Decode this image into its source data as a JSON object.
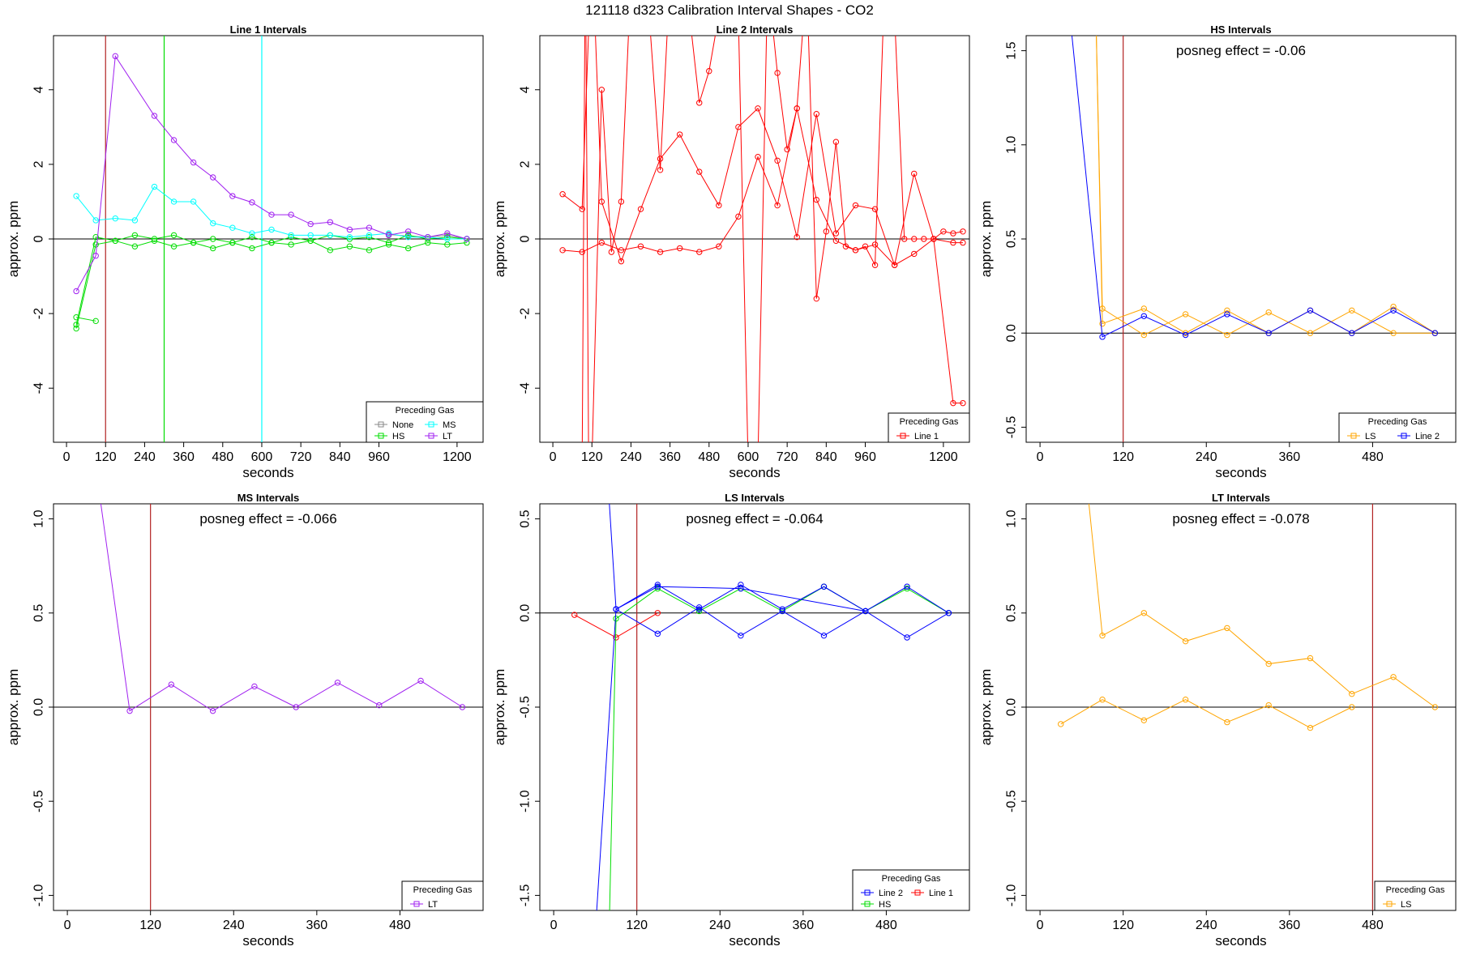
{
  "figure": {
    "title": "121118  d323   Calibration Interval Shapes - CO2"
  },
  "chart_data": [
    {
      "type": "line",
      "title": "Line 1 Intervals",
      "xlabel": "seconds",
      "ylabel": "approx. ppm",
      "xlim": [
        -40,
        1280
      ],
      "ylim": [
        -5.45,
        5.45
      ],
      "xticks": [
        0,
        120,
        240,
        360,
        480,
        600,
        720,
        840,
        960,
        1200
      ],
      "yticks": [
        -4,
        -2,
        0,
        2,
        4
      ],
      "hlines": [
        0
      ],
      "vlines": [
        {
          "x": 120,
          "color": "#b22222"
        },
        {
          "x": 300,
          "color": "#00dd00"
        },
        {
          "x": 600,
          "color": "#00ffff"
        }
      ],
      "annotation": "",
      "legend": {
        "title": "Preceding Gas",
        "position": "bottom-right",
        "cols": 2,
        "entries": [
          {
            "label": "None",
            "color": "#888888"
          },
          {
            "label": "MS",
            "color": "#00ffff"
          },
          {
            "label": "HS",
            "color": "#00dd00"
          },
          {
            "label": "LT",
            "color": "#a020f0"
          }
        ]
      },
      "series": [
        {
          "name": "None",
          "color": "#888888",
          "x": [
            990,
            1050,
            1110,
            1170,
            1230
          ],
          "y": [
            0.12,
            0.08,
            0.05,
            0.1,
            0.0
          ]
        },
        {
          "name": "HS",
          "color": "#00dd00",
          "x": [
            30,
            90,
            150,
            210,
            270,
            330,
            390,
            450,
            510,
            570,
            630,
            690,
            750,
            810,
            870,
            930,
            990,
            1050,
            1110,
            1170,
            1230
          ],
          "y": [
            -2.3,
            0.05,
            -0.05,
            -0.2,
            -0.05,
            -0.2,
            -0.1,
            -0.25,
            -0.1,
            -0.25,
            -0.1,
            -0.15,
            -0.05,
            -0.3,
            -0.2,
            -0.3,
            -0.15,
            -0.25,
            -0.1,
            -0.15,
            -0.1
          ]
        },
        {
          "name": "HS",
          "color": "#00dd00",
          "x": [
            30,
            90,
            150,
            210,
            270,
            330,
            390,
            450,
            510,
            570,
            630,
            690,
            750,
            810,
            870,
            930,
            990,
            1050,
            1110,
            1170,
            1230
          ],
          "y": [
            -2.4,
            -0.15,
            -0.05,
            0.1,
            0.0,
            0.1,
            -0.1,
            0.0,
            -0.1,
            0.05,
            -0.1,
            0.05,
            -0.05,
            0.1,
            0.0,
            0.05,
            -0.1,
            0.1,
            0.0,
            0.05,
            0.0
          ]
        },
        {
          "name": "HS",
          "color": "#00dd00",
          "x": [
            30,
            90
          ],
          "y": [
            -2.1,
            -2.2
          ]
        },
        {
          "name": "MS",
          "color": "#00ffff",
          "x": [
            30,
            90,
            150,
            210,
            270,
            330,
            390,
            450,
            510,
            570,
            630,
            690,
            750,
            810,
            870,
            930,
            990,
            1050,
            1110,
            1170,
            1230
          ],
          "y": [
            1.15,
            0.5,
            0.55,
            0.5,
            1.4,
            1.0,
            1.0,
            0.42,
            0.3,
            0.15,
            0.25,
            0.1,
            0.1,
            0.1,
            0.05,
            0.1,
            0.15,
            0.05,
            0.05,
            0.0,
            0.0
          ]
        },
        {
          "name": "LT",
          "color": "#a020f0",
          "x": [
            30,
            90,
            150,
            270,
            330,
            390,
            450,
            510,
            570,
            630,
            690,
            750,
            810,
            870,
            930,
            990,
            1050,
            1110,
            1170,
            1230
          ],
          "y": [
            -1.4,
            -0.45,
            4.9,
            3.3,
            2.65,
            2.05,
            1.65,
            1.15,
            0.98,
            0.65,
            0.65,
            0.4,
            0.45,
            0.25,
            0.3,
            0.1,
            0.2,
            0.05,
            0.15,
            0.0
          ]
        }
      ]
    },
    {
      "type": "line",
      "title": "Line 2 Intervals",
      "xlabel": "seconds",
      "ylabel": "approx. ppm",
      "xlim": [
        -40,
        1280
      ],
      "ylim": [
        -5.45,
        5.45
      ],
      "xticks": [
        0,
        120,
        240,
        360,
        480,
        600,
        720,
        840,
        960,
        1200
      ],
      "yticks": [
        -4,
        -2,
        0,
        2,
        4
      ],
      "hlines": [
        0
      ],
      "vlines": [],
      "annotation": "",
      "legend": {
        "title": "Preceding Gas",
        "position": "bottom-right",
        "cols": 1,
        "entries": [
          {
            "label": "Line 1",
            "color": "#ff0000"
          }
        ]
      },
      "series": [
        {
          "name": "Line 1",
          "color": "#ff0000",
          "x": [
            30,
            90,
            150,
            210,
            270,
            330,
            390,
            450,
            510,
            570,
            630,
            690,
            750,
            810,
            870,
            930,
            990,
            1050,
            1110,
            1170,
            1230,
            1260
          ],
          "y": [
            -0.3,
            -0.35,
            -0.1,
            -0.3,
            -0.2,
            -0.35,
            -0.25,
            -0.35,
            -0.2,
            0.6,
            2.2,
            0.9,
            3.5,
            1.05,
            -0.05,
            -0.3,
            -0.15,
            -0.7,
            -0.4,
            0.0,
            -0.1,
            -0.1
          ]
        },
        {
          "name": "Line 1",
          "color": "#ff0000",
          "x": [
            30,
            90,
            120,
            150,
            210,
            270,
            330,
            390,
            450,
            510,
            570,
            630,
            690,
            750,
            810,
            870,
            930,
            990,
            1050,
            1110,
            1170,
            1230,
            1260
          ],
          "y": [
            1.2,
            0.8,
            8,
            1.0,
            -0.6,
            0.8,
            2.15,
            2.8,
            1.8,
            0.9,
            3.0,
            3.5,
            2.1,
            0.05,
            3.35,
            0.15,
            0.9,
            0.8,
            -0.7,
            1.75,
            0.0,
            -4.4,
            -4.4
          ]
        },
        {
          "name": "Line 1",
          "color": "#ff0000",
          "x": [
            90,
            100,
            110,
            120,
            150,
            180,
            210,
            240,
            270,
            300,
            330,
            360,
            390,
            420,
            450,
            480,
            510,
            540,
            570,
            600,
            630,
            660,
            690,
            720,
            750,
            780,
            810,
            840,
            870,
            900,
            930,
            960,
            990,
            1020,
            1050,
            1080,
            1110,
            1140,
            1170,
            1200,
            1230,
            1260
          ],
          "y": [
            -6,
            8,
            -6,
            -6,
            4.0,
            -0.35,
            1.0,
            7,
            6,
            5.5,
            1.85,
            7,
            5.5,
            6,
            3.65,
            4.5,
            6,
            6,
            6,
            -6,
            -6,
            7,
            4.45,
            2.4,
            3.5,
            7,
            -1.6,
            0.2,
            2.6,
            -0.2,
            -0.3,
            -0.2,
            -0.7,
            7,
            6,
            0.0,
            0.0,
            0.0,
            0.0,
            0.2,
            0.15,
            0.2
          ]
        }
      ]
    },
    {
      "type": "line",
      "title": "HS Intervals",
      "xlabel": "seconds",
      "ylabel": "approx. ppm",
      "xlim": [
        -20,
        600
      ],
      "ylim": [
        -0.58,
        1.58
      ],
      "xticks": [
        0,
        120,
        240,
        360,
        480
      ],
      "yticks": [
        -0.5,
        0.0,
        0.5,
        1.0,
        1.5
      ],
      "hlines": [
        0
      ],
      "vlines": [
        {
          "x": 120,
          "color": "#b22222"
        }
      ],
      "annotation": "posneg effect = -0.06",
      "legend": {
        "title": "Preceding Gas",
        "position": "bottom-right",
        "cols": 2,
        "entries": [
          {
            "label": "LS",
            "color": "#ffa500"
          },
          {
            "label": "Line 2",
            "color": "#0000ff"
          }
        ]
      },
      "series": [
        {
          "name": "LS",
          "color": "#ffa500",
          "x": [
            80,
            90,
            150,
            210,
            270,
            330,
            390,
            450,
            510,
            570
          ],
          "y": [
            1.8,
            0.05,
            0.13,
            0.0,
            0.12,
            0.0,
            0.12,
            0.0,
            0.14,
            0.0
          ]
        },
        {
          "name": "LS",
          "color": "#ffa500",
          "x": [
            80,
            90,
            150,
            210,
            270,
            330,
            390,
            450,
            510,
            570
          ],
          "y": [
            1.8,
            0.13,
            -0.01,
            0.1,
            -0.01,
            0.11,
            0.0,
            0.12,
            0.0,
            0.0
          ]
        },
        {
          "name": "Line 2",
          "color": "#0000ff",
          "x": [
            40,
            90,
            150,
            210,
            270,
            330,
            390,
            450,
            510,
            570
          ],
          "y": [
            1.8,
            -0.02,
            0.09,
            -0.01,
            0.1,
            0.0,
            0.12,
            0.0,
            0.12,
            0.0
          ]
        }
      ]
    },
    {
      "type": "line",
      "title": "MS Intervals",
      "xlabel": "seconds",
      "ylabel": "approx. ppm",
      "xlim": [
        -20,
        600
      ],
      "ylim": [
        -1.08,
        1.08
      ],
      "xticks": [
        0,
        120,
        240,
        360,
        480
      ],
      "yticks": [
        -1.0,
        -0.5,
        0.0,
        0.5,
        1.0
      ],
      "hlines": [
        0
      ],
      "vlines": [
        {
          "x": 120,
          "color": "#b22222"
        }
      ],
      "annotation": "posneg effect = -0.066",
      "legend": {
        "title": "Preceding Gas",
        "position": "bottom-right",
        "cols": 1,
        "entries": [
          {
            "label": "LT",
            "color": "#a020f0"
          }
        ]
      },
      "series": [
        {
          "name": "LT",
          "color": "#a020f0",
          "x": [
            40,
            90,
            150,
            210,
            270,
            330,
            390,
            450,
            510,
            570
          ],
          "y": [
            1.3,
            -0.02,
            0.12,
            -0.02,
            0.11,
            0.0,
            0.13,
            0.01,
            0.14,
            0.0
          ]
        }
      ]
    },
    {
      "type": "line",
      "title": "LS Intervals",
      "xlabel": "seconds",
      "ylabel": "approx. ppm",
      "xlim": [
        -20,
        600
      ],
      "ylim": [
        -1.58,
        0.58
      ],
      "xticks": [
        0,
        120,
        240,
        360,
        480
      ],
      "yticks": [
        -1.5,
        -1.0,
        -0.5,
        0.0,
        0.5
      ],
      "hlines": [
        0
      ],
      "vlines": [
        {
          "x": 120,
          "color": "#b22222"
        }
      ],
      "annotation": "posneg effect = -0.064",
      "legend": {
        "title": "Preceding Gas",
        "position": "bottom-right",
        "cols": 2,
        "entries": [
          {
            "label": "Line 2",
            "color": "#0000ff"
          },
          {
            "label": "Line 1",
            "color": "#ff0000"
          },
          {
            "label": "HS",
            "color": "#00dd00"
          }
        ]
      },
      "series": [
        {
          "name": "Line 1",
          "color": "#ff0000",
          "x": [
            30,
            90,
            150
          ],
          "y": [
            -0.01,
            -0.13,
            0.0
          ]
        },
        {
          "name": "HS",
          "color": "#00dd00",
          "x": [
            80,
            90,
            150,
            210,
            270,
            330,
            390,
            450,
            510,
            570
          ],
          "y": [
            -1.7,
            -0.03,
            0.13,
            0.01,
            0.13,
            0.01,
            0.14,
            0.01,
            0.13,
            0.0
          ]
        },
        {
          "name": "Line 2",
          "color": "#0000ff",
          "x": [
            60,
            90,
            150,
            210,
            270,
            330,
            390,
            450,
            510,
            570
          ],
          "y": [
            -1.7,
            0.02,
            0.15,
            0.02,
            0.15,
            0.02,
            0.14,
            0.01,
            0.14,
            0.0
          ]
        },
        {
          "name": "Line 2",
          "color": "#0000ff",
          "x": [
            80,
            90,
            150,
            210,
            270,
            330,
            390,
            450,
            510,
            570
          ],
          "y": [
            0.6,
            0.02,
            -0.11,
            0.03,
            -0.12,
            0.01,
            -0.12,
            0.01,
            -0.13,
            0.0
          ]
        },
        {
          "name": "Line 2",
          "color": "#0000ff",
          "x": [
            90,
            150,
            270,
            450
          ],
          "y": [
            0.02,
            0.14,
            0.13,
            0.01
          ]
        }
      ]
    },
    {
      "type": "line",
      "title": "LT Intervals",
      "xlabel": "seconds",
      "ylabel": "approx. ppm",
      "xlim": [
        -20,
        600
      ],
      "ylim": [
        -1.08,
        1.08
      ],
      "xticks": [
        0,
        120,
        240,
        360,
        480
      ],
      "yticks": [
        -1.0,
        -0.5,
        0.0,
        0.5,
        1.0
      ],
      "hlines": [
        0
      ],
      "vlines": [
        {
          "x": 480,
          "color": "#b22222"
        }
      ],
      "annotation": "posneg effect = -0.078",
      "legend": {
        "title": "Preceding Gas",
        "position": "bottom-right",
        "cols": 1,
        "entries": [
          {
            "label": "LS",
            "color": "#ffa500"
          }
        ]
      },
      "series": [
        {
          "name": "LS",
          "color": "#ffa500",
          "x": [
            70,
            90,
            150,
            210,
            270,
            330,
            390,
            450,
            510,
            570
          ],
          "y": [
            1.1,
            0.38,
            0.5,
            0.35,
            0.42,
            0.23,
            0.26,
            0.07,
            0.16,
            0.0
          ]
        },
        {
          "name": "LS",
          "color": "#ffa500",
          "x": [
            30,
            90,
            150,
            210,
            270,
            330,
            390,
            450
          ],
          "y": [
            -0.09,
            0.04,
            -0.07,
            0.04,
            -0.08,
            0.01,
            -0.11,
            0.0
          ]
        }
      ]
    }
  ]
}
